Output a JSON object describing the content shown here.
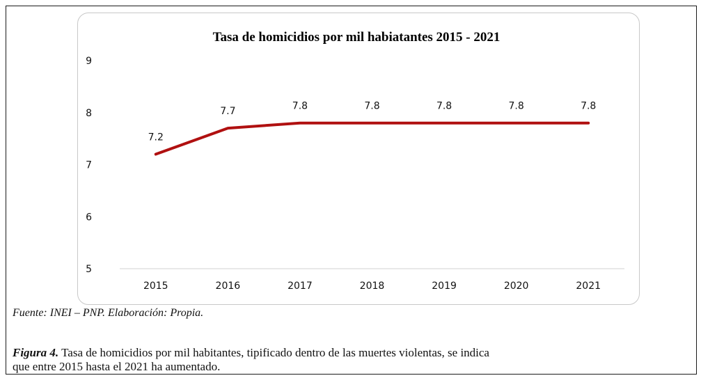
{
  "chart_data": {
    "type": "line",
    "title": "Tasa de homicidios por mil habiatantes 2015 - 2021",
    "x": [
      "2015",
      "2016",
      "2017",
      "2018",
      "2019",
      "2020",
      "2021"
    ],
    "series": [
      {
        "values": [
          7.2,
          7.7,
          7.8,
          7.8,
          7.8,
          7.8,
          7.8
        ]
      }
    ],
    "data_labels": [
      "7.2",
      "7.7",
      "7.8",
      "7.8",
      "7.8",
      "7.8",
      "7.8"
    ],
    "ylim": [
      5,
      9
    ],
    "yticks": [
      "5",
      "6",
      "7",
      "8",
      "9"
    ],
    "grid": false,
    "line_color": "#b01010"
  },
  "source_note": "Fuente: INEI – PNP. Elaboración: Propia.",
  "caption": {
    "label": "Figura 4.",
    "line1": " Tasa de homicidios por mil habitantes, tipificado dentro de las muertes violentas, se indica",
    "line2": "que entre 2015 hasta el 2021 ha aumentado."
  }
}
